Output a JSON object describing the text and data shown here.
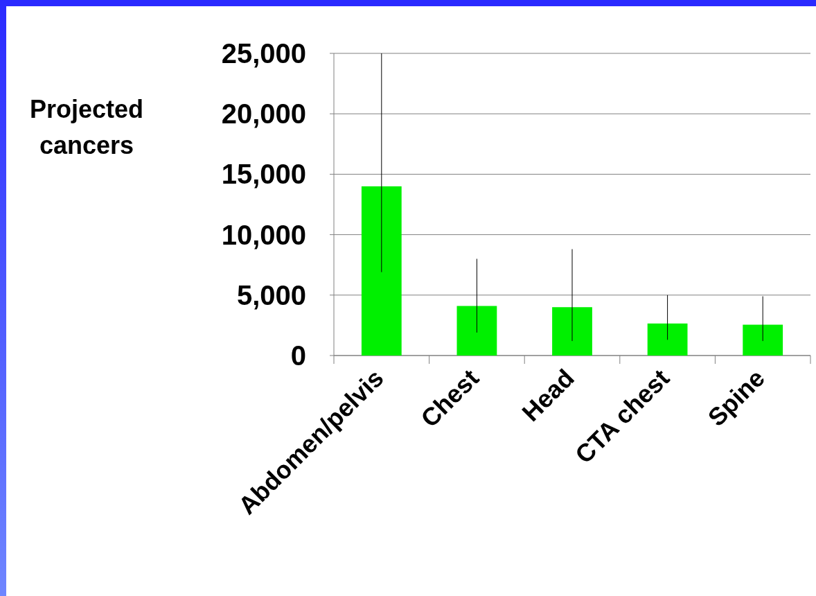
{
  "chart_data": {
    "type": "bar",
    "ylabel": "Projected cancers",
    "categories": [
      "Abdomen/pelvis",
      "Chest",
      "Head",
      "CTA chest",
      "Spine"
    ],
    "values": [
      14000,
      4100,
      4000,
      2650,
      2550
    ],
    "errors": [
      [
        6900,
        25000
      ],
      [
        1900,
        8000
      ],
      [
        1200,
        8800
      ],
      [
        1300,
        5000
      ],
      [
        1200,
        4900
      ]
    ],
    "color": "#00f000",
    "ylim": [
      0,
      25000
    ],
    "yticks": [
      {
        "value": 0,
        "label": "0"
      },
      {
        "value": 5000,
        "label": "5,000"
      },
      {
        "value": 10000,
        "label": "10,000"
      },
      {
        "value": 15000,
        "label": "15,000"
      },
      {
        "value": 20000,
        "label": "20,000"
      },
      {
        "value": 25000,
        "label": "25,000"
      }
    ],
    "grid": "y"
  }
}
